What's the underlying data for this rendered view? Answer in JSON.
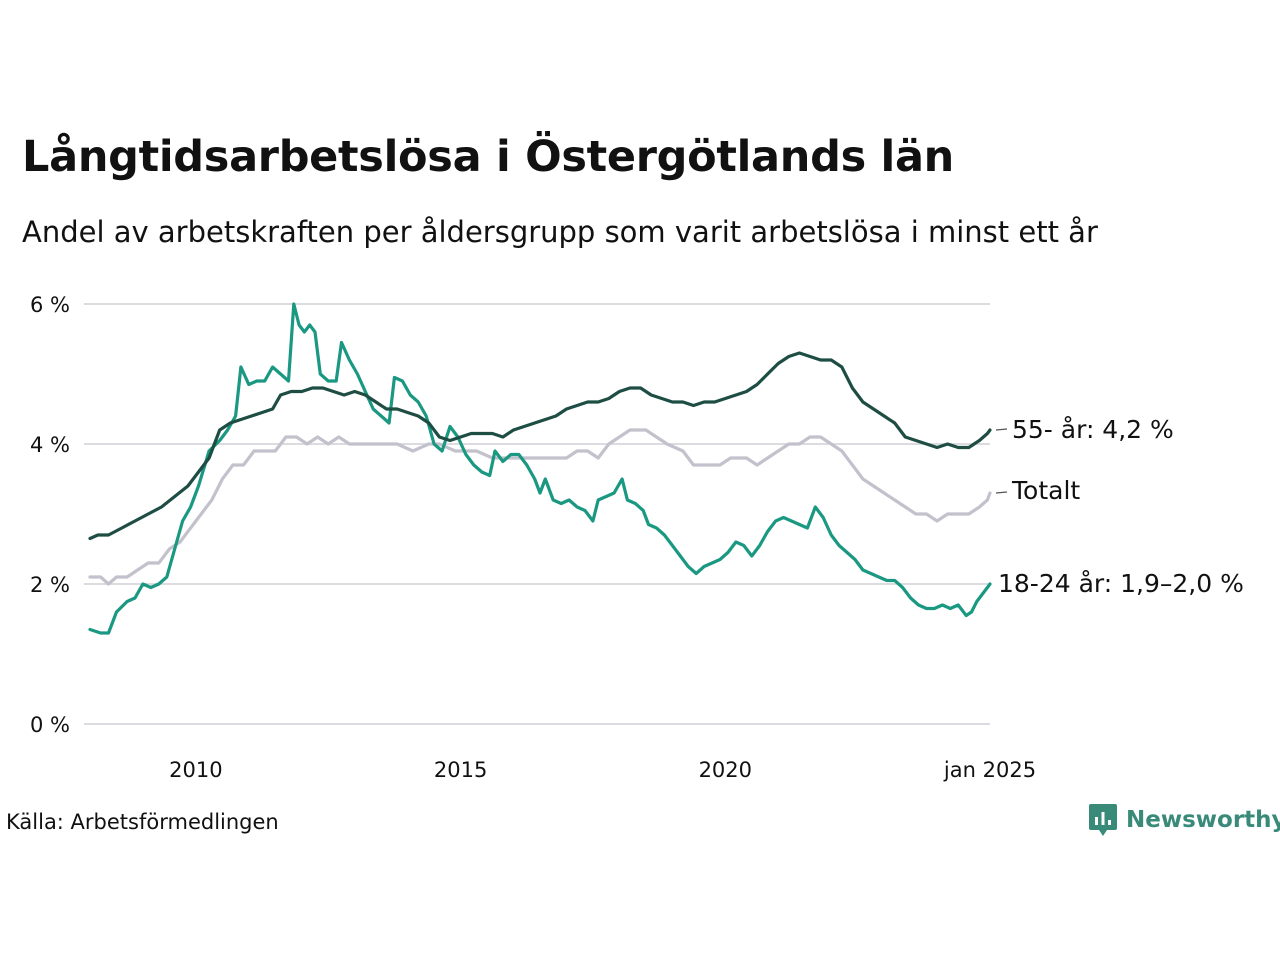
{
  "title": "Långtidsarbetslösa i Östergötlands län",
  "subtitle": "Andel av arbetskraften per åldersgrupp som varit arbetslösa i minst ett år",
  "source": "Källa: Arbetsförmedlingen",
  "logo": {
    "text": "Newsworthy",
    "color": "#3a8a7a"
  },
  "chart_data": {
    "type": "line",
    "title": "Långtidsarbetslösa i Östergötlands län",
    "subtitle": "Andel av arbetskraften per åldersgrupp som varit arbetslösa i minst ett år",
    "xlabel": "",
    "ylabel": "",
    "xlim": [
      2008.0,
      2025.0
    ],
    "ylim": [
      0,
      6
    ],
    "grid": true,
    "y_ticks": [
      {
        "value": 0,
        "label": "0 %"
      },
      {
        "value": 2,
        "label": "2 %"
      },
      {
        "value": 4,
        "label": "4 %"
      },
      {
        "value": 6,
        "label": "6 %"
      }
    ],
    "x_ticks": [
      {
        "value": 2010,
        "label": "2010"
      },
      {
        "value": 2015,
        "label": "2015"
      },
      {
        "value": 2020,
        "label": "2020"
      },
      {
        "value": 2025,
        "label": "jan 2025"
      }
    ],
    "series": [
      {
        "name": "Totalt",
        "label": "Totalt",
        "color": "#c3c1cc",
        "points": [
          [
            2008.0,
            2.1
          ],
          [
            2008.2,
            2.1
          ],
          [
            2008.35,
            2.0
          ],
          [
            2008.5,
            2.1
          ],
          [
            2008.7,
            2.1
          ],
          [
            2008.9,
            2.2
          ],
          [
            2009.1,
            2.3
          ],
          [
            2009.3,
            2.3
          ],
          [
            2009.5,
            2.5
          ],
          [
            2009.7,
            2.6
          ],
          [
            2009.9,
            2.8
          ],
          [
            2010.1,
            3.0
          ],
          [
            2010.3,
            3.2
          ],
          [
            2010.5,
            3.5
          ],
          [
            2010.7,
            3.7
          ],
          [
            2010.9,
            3.7
          ],
          [
            2011.1,
            3.9
          ],
          [
            2011.3,
            3.9
          ],
          [
            2011.5,
            3.9
          ],
          [
            2011.7,
            4.1
          ],
          [
            2011.9,
            4.1
          ],
          [
            2012.1,
            4.0
          ],
          [
            2012.3,
            4.1
          ],
          [
            2012.5,
            4.0
          ],
          [
            2012.7,
            4.1
          ],
          [
            2012.9,
            4.0
          ],
          [
            2013.2,
            4.0
          ],
          [
            2013.5,
            4.0
          ],
          [
            2013.8,
            4.0
          ],
          [
            2014.1,
            3.9
          ],
          [
            2014.4,
            4.0
          ],
          [
            2014.6,
            4.0
          ],
          [
            2014.9,
            3.9
          ],
          [
            2015.1,
            3.9
          ],
          [
            2015.3,
            3.9
          ],
          [
            2015.6,
            3.8
          ],
          [
            2015.9,
            3.8
          ],
          [
            2016.2,
            3.8
          ],
          [
            2016.5,
            3.8
          ],
          [
            2016.8,
            3.8
          ],
          [
            2017.0,
            3.8
          ],
          [
            2017.2,
            3.9
          ],
          [
            2017.4,
            3.9
          ],
          [
            2017.6,
            3.8
          ],
          [
            2017.8,
            4.0
          ],
          [
            2018.0,
            4.1
          ],
          [
            2018.2,
            4.2
          ],
          [
            2018.5,
            4.2
          ],
          [
            2018.7,
            4.1
          ],
          [
            2018.9,
            4.0
          ],
          [
            2019.2,
            3.9
          ],
          [
            2019.4,
            3.7
          ],
          [
            2019.6,
            3.7
          ],
          [
            2019.9,
            3.7
          ],
          [
            2020.1,
            3.8
          ],
          [
            2020.4,
            3.8
          ],
          [
            2020.6,
            3.7
          ],
          [
            2020.8,
            3.8
          ],
          [
            2021.0,
            3.9
          ],
          [
            2021.2,
            4.0
          ],
          [
            2021.4,
            4.0
          ],
          [
            2021.6,
            4.1
          ],
          [
            2021.8,
            4.1
          ],
          [
            2022.0,
            4.0
          ],
          [
            2022.2,
            3.9
          ],
          [
            2022.4,
            3.7
          ],
          [
            2022.6,
            3.5
          ],
          [
            2022.8,
            3.4
          ],
          [
            2023.0,
            3.3
          ],
          [
            2023.2,
            3.2
          ],
          [
            2023.4,
            3.1
          ],
          [
            2023.6,
            3.0
          ],
          [
            2023.8,
            3.0
          ],
          [
            2024.0,
            2.9
          ],
          [
            2024.2,
            3.0
          ],
          [
            2024.4,
            3.0
          ],
          [
            2024.6,
            3.0
          ],
          [
            2024.8,
            3.1
          ],
          [
            2024.95,
            3.2
          ],
          [
            2025.0,
            3.3
          ]
        ]
      },
      {
        "name": "18-24 år",
        "label": "18-24 år: 1,9–2,0 %",
        "color": "#1a9882",
        "points": [
          [
            2008.0,
            1.35
          ],
          [
            2008.2,
            1.3
          ],
          [
            2008.35,
            1.3
          ],
          [
            2008.5,
            1.6
          ],
          [
            2008.7,
            1.75
          ],
          [
            2008.85,
            1.8
          ],
          [
            2009.0,
            2.0
          ],
          [
            2009.15,
            1.95
          ],
          [
            2009.3,
            2.0
          ],
          [
            2009.45,
            2.1
          ],
          [
            2009.6,
            2.5
          ],
          [
            2009.75,
            2.9
          ],
          [
            2009.9,
            3.1
          ],
          [
            2010.05,
            3.4
          ],
          [
            2010.25,
            3.9
          ],
          [
            2010.45,
            4.05
          ],
          [
            2010.6,
            4.2
          ],
          [
            2010.75,
            4.4
          ],
          [
            2010.85,
            5.1
          ],
          [
            2011.0,
            4.85
          ],
          [
            2011.15,
            4.9
          ],
          [
            2011.3,
            4.9
          ],
          [
            2011.45,
            5.1
          ],
          [
            2011.6,
            5.0
          ],
          [
            2011.75,
            4.9
          ],
          [
            2011.85,
            6.0
          ],
          [
            2011.95,
            5.7
          ],
          [
            2012.05,
            5.6
          ],
          [
            2012.15,
            5.7
          ],
          [
            2012.25,
            5.6
          ],
          [
            2012.35,
            5.0
          ],
          [
            2012.5,
            4.9
          ],
          [
            2012.65,
            4.9
          ],
          [
            2012.75,
            5.45
          ],
          [
            2012.9,
            5.2
          ],
          [
            2013.05,
            5.0
          ],
          [
            2013.2,
            4.75
          ],
          [
            2013.35,
            4.5
          ],
          [
            2013.5,
            4.4
          ],
          [
            2013.65,
            4.3
          ],
          [
            2013.75,
            4.95
          ],
          [
            2013.9,
            4.9
          ],
          [
            2014.05,
            4.7
          ],
          [
            2014.2,
            4.6
          ],
          [
            2014.35,
            4.4
          ],
          [
            2014.5,
            4.0
          ],
          [
            2014.65,
            3.9
          ],
          [
            2014.8,
            4.25
          ],
          [
            2014.95,
            4.1
          ],
          [
            2015.1,
            3.85
          ],
          [
            2015.25,
            3.7
          ],
          [
            2015.4,
            3.6
          ],
          [
            2015.55,
            3.55
          ],
          [
            2015.65,
            3.9
          ],
          [
            2015.8,
            3.75
          ],
          [
            2015.95,
            3.85
          ],
          [
            2016.1,
            3.85
          ],
          [
            2016.25,
            3.7
          ],
          [
            2016.4,
            3.5
          ],
          [
            2016.5,
            3.3
          ],
          [
            2016.6,
            3.5
          ],
          [
            2016.75,
            3.2
          ],
          [
            2016.9,
            3.15
          ],
          [
            2017.05,
            3.2
          ],
          [
            2017.2,
            3.1
          ],
          [
            2017.35,
            3.05
          ],
          [
            2017.5,
            2.9
          ],
          [
            2017.6,
            3.2
          ],
          [
            2017.75,
            3.25
          ],
          [
            2017.9,
            3.3
          ],
          [
            2018.05,
            3.5
          ],
          [
            2018.15,
            3.2
          ],
          [
            2018.3,
            3.15
          ],
          [
            2018.45,
            3.05
          ],
          [
            2018.55,
            2.85
          ],
          [
            2018.7,
            2.8
          ],
          [
            2018.85,
            2.7
          ],
          [
            2019.0,
            2.55
          ],
          [
            2019.15,
            2.4
          ],
          [
            2019.3,
            2.25
          ],
          [
            2019.45,
            2.15
          ],
          [
            2019.6,
            2.25
          ],
          [
            2019.75,
            2.3
          ],
          [
            2019.9,
            2.35
          ],
          [
            2020.05,
            2.45
          ],
          [
            2020.2,
            2.6
          ],
          [
            2020.35,
            2.55
          ],
          [
            2020.5,
            2.4
          ],
          [
            2020.65,
            2.55
          ],
          [
            2020.8,
            2.75
          ],
          [
            2020.95,
            2.9
          ],
          [
            2021.1,
            2.95
          ],
          [
            2021.25,
            2.9
          ],
          [
            2021.4,
            2.85
          ],
          [
            2021.55,
            2.8
          ],
          [
            2021.7,
            3.1
          ],
          [
            2021.85,
            2.95
          ],
          [
            2022.0,
            2.7
          ],
          [
            2022.15,
            2.55
          ],
          [
            2022.3,
            2.45
          ],
          [
            2022.45,
            2.35
          ],
          [
            2022.6,
            2.2
          ],
          [
            2022.75,
            2.15
          ],
          [
            2022.9,
            2.1
          ],
          [
            2023.05,
            2.05
          ],
          [
            2023.2,
            2.05
          ],
          [
            2023.35,
            1.95
          ],
          [
            2023.5,
            1.8
          ],
          [
            2023.65,
            1.7
          ],
          [
            2023.8,
            1.65
          ],
          [
            2023.95,
            1.65
          ],
          [
            2024.1,
            1.7
          ],
          [
            2024.25,
            1.65
          ],
          [
            2024.4,
            1.7
          ],
          [
            2024.55,
            1.55
          ],
          [
            2024.65,
            1.6
          ],
          [
            2024.75,
            1.75
          ],
          [
            2024.85,
            1.85
          ],
          [
            2024.95,
            1.95
          ],
          [
            2025.0,
            2.0
          ]
        ]
      },
      {
        "name": "55- år",
        "label": "55- år: 4,2 %",
        "color": "#1e4d44",
        "points": [
          [
            2008.0,
            2.65
          ],
          [
            2008.15,
            2.7
          ],
          [
            2008.35,
            2.7
          ],
          [
            2008.6,
            2.8
          ],
          [
            2008.85,
            2.9
          ],
          [
            2009.1,
            3.0
          ],
          [
            2009.35,
            3.1
          ],
          [
            2009.6,
            3.25
          ],
          [
            2009.85,
            3.4
          ],
          [
            2010.05,
            3.6
          ],
          [
            2010.25,
            3.8
          ],
          [
            2010.45,
            4.2
          ],
          [
            2010.65,
            4.3
          ],
          [
            2010.85,
            4.35
          ],
          [
            2011.05,
            4.4
          ],
          [
            2011.25,
            4.45
          ],
          [
            2011.45,
            4.5
          ],
          [
            2011.6,
            4.7
          ],
          [
            2011.8,
            4.75
          ],
          [
            2012.0,
            4.75
          ],
          [
            2012.2,
            4.8
          ],
          [
            2012.4,
            4.8
          ],
          [
            2012.6,
            4.75
          ],
          [
            2012.8,
            4.7
          ],
          [
            2013.0,
            4.75
          ],
          [
            2013.2,
            4.7
          ],
          [
            2013.4,
            4.6
          ],
          [
            2013.6,
            4.5
          ],
          [
            2013.8,
            4.5
          ],
          [
            2014.0,
            4.45
          ],
          [
            2014.2,
            4.4
          ],
          [
            2014.4,
            4.3
          ],
          [
            2014.6,
            4.1
          ],
          [
            2014.8,
            4.05
          ],
          [
            2015.0,
            4.1
          ],
          [
            2015.2,
            4.15
          ],
          [
            2015.4,
            4.15
          ],
          [
            2015.6,
            4.15
          ],
          [
            2015.8,
            4.1
          ],
          [
            2016.0,
            4.2
          ],
          [
            2016.2,
            4.25
          ],
          [
            2016.4,
            4.3
          ],
          [
            2016.6,
            4.35
          ],
          [
            2016.8,
            4.4
          ],
          [
            2017.0,
            4.5
          ],
          [
            2017.2,
            4.55
          ],
          [
            2017.4,
            4.6
          ],
          [
            2017.6,
            4.6
          ],
          [
            2017.8,
            4.65
          ],
          [
            2018.0,
            4.75
          ],
          [
            2018.2,
            4.8
          ],
          [
            2018.4,
            4.8
          ],
          [
            2018.6,
            4.7
          ],
          [
            2018.8,
            4.65
          ],
          [
            2019.0,
            4.6
          ],
          [
            2019.2,
            4.6
          ],
          [
            2019.4,
            4.55
          ],
          [
            2019.6,
            4.6
          ],
          [
            2019.8,
            4.6
          ],
          [
            2020.0,
            4.65
          ],
          [
            2020.2,
            4.7
          ],
          [
            2020.4,
            4.75
          ],
          [
            2020.6,
            4.85
          ],
          [
            2020.8,
            5.0
          ],
          [
            2021.0,
            5.15
          ],
          [
            2021.2,
            5.25
          ],
          [
            2021.4,
            5.3
          ],
          [
            2021.6,
            5.25
          ],
          [
            2021.8,
            5.2
          ],
          [
            2022.0,
            5.2
          ],
          [
            2022.2,
            5.1
          ],
          [
            2022.4,
            4.8
          ],
          [
            2022.6,
            4.6
          ],
          [
            2022.8,
            4.5
          ],
          [
            2023.0,
            4.4
          ],
          [
            2023.2,
            4.3
          ],
          [
            2023.4,
            4.1
          ],
          [
            2023.6,
            4.05
          ],
          [
            2023.8,
            4.0
          ],
          [
            2024.0,
            3.95
          ],
          [
            2024.2,
            4.0
          ],
          [
            2024.4,
            3.95
          ],
          [
            2024.6,
            3.95
          ],
          [
            2024.8,
            4.05
          ],
          [
            2024.95,
            4.15
          ],
          [
            2025.0,
            4.2
          ]
        ]
      }
    ]
  }
}
